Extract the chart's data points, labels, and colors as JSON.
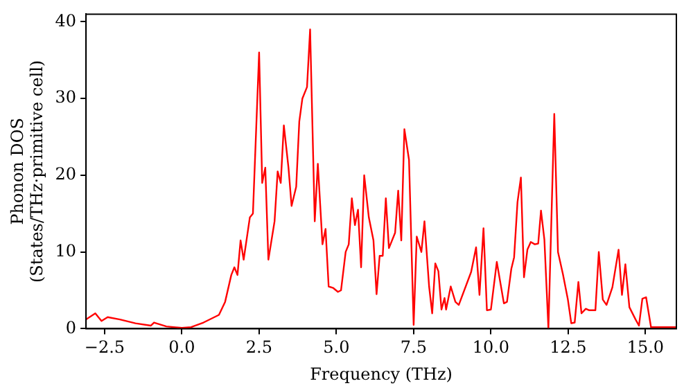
{
  "chart_data": {
    "type": "line",
    "xlabel": "Frequency (THz)",
    "ylabel": "Phonon DOS\n(States/THz·primitive cell)",
    "xlim": [
      -3.1,
      16.0
    ],
    "ylim": [
      0,
      41
    ],
    "xticks": [
      {
        "value": -2.5,
        "label": "−2.5"
      },
      {
        "value": 0,
        "label": "0.0"
      },
      {
        "value": 2.5,
        "label": "2.5"
      },
      {
        "value": 5,
        "label": "5.0"
      },
      {
        "value": 7.5,
        "label": "7.5"
      },
      {
        "value": 10,
        "label": "10.0"
      },
      {
        "value": 12.5,
        "label": "12.5"
      },
      {
        "value": 15,
        "label": "15.0"
      }
    ],
    "yticks": [
      0,
      10,
      20,
      30,
      40
    ],
    "grid": false,
    "legend": false,
    "marker": "none",
    "line_style": "solid",
    "series": [
      {
        "color": "#ff0000",
        "x": [
          -3.1,
          -2.8,
          -2.6,
          -2.4,
          -2.0,
          -1.5,
          -1.0,
          -0.9,
          -0.5,
          0.0,
          0.3,
          0.7,
          1.2,
          1.4,
          1.6,
          1.7,
          1.8,
          1.9,
          2.0,
          2.2,
          2.3,
          2.5,
          2.6,
          2.7,
          2.8,
          3.0,
          3.1,
          3.2,
          3.3,
          3.45,
          3.55,
          3.7,
          3.8,
          3.9,
          4.05,
          4.15,
          4.3,
          4.4,
          4.55,
          4.65,
          4.75,
          4.9,
          5.05,
          5.15,
          5.3,
          5.4,
          5.5,
          5.6,
          5.7,
          5.8,
          5.9,
          6.05,
          6.2,
          6.3,
          6.4,
          6.5,
          6.6,
          6.7,
          6.9,
          7.0,
          7.1,
          7.2,
          7.35,
          7.5,
          7.6,
          7.75,
          7.85,
          8.0,
          8.1,
          8.2,
          8.3,
          8.4,
          8.5,
          8.55,
          8.7,
          8.85,
          8.96,
          9.36,
          9.52,
          9.63,
          9.76,
          9.87,
          10.0,
          10.19,
          10.42,
          10.52,
          10.66,
          10.75,
          10.86,
          10.97,
          11.07,
          11.18,
          11.29,
          11.42,
          11.53,
          11.62,
          11.73,
          11.86,
          12.05,
          12.17,
          12.33,
          12.49,
          12.6,
          12.71,
          12.83,
          12.93,
          13.07,
          13.18,
          13.38,
          13.49,
          13.62,
          13.74,
          13.93,
          14.13,
          14.24,
          14.35,
          14.48,
          14.68,
          14.79,
          14.9,
          15.02,
          15.18,
          16.0
        ],
        "values": [
          1.2,
          2.0,
          1.0,
          1.5,
          1.2,
          0.7,
          0.4,
          0.8,
          0.3,
          0.1,
          0.2,
          0.8,
          1.8,
          3.5,
          7,
          8,
          7,
          11.5,
          9,
          14.5,
          15,
          36,
          19,
          21,
          9,
          14,
          20.5,
          19,
          26.5,
          21,
          16,
          18.5,
          27,
          30,
          31.5,
          39,
          14,
          21.5,
          11,
          13,
          5.5,
          5.3,
          4.8,
          5,
          10,
          11,
          17,
          13.5,
          15.5,
          8,
          20,
          14.5,
          11.5,
          4.5,
          9.5,
          9.5,
          17,
          10.5,
          12.5,
          18,
          11.5,
          26,
          22,
          0.5,
          12,
          10,
          14,
          5.5,
          2,
          8.5,
          7.5,
          2.5,
          4,
          2.5,
          5.5,
          3.5,
          3.1,
          7.4,
          10.6,
          4.4,
          13.1,
          2.4,
          2.5,
          8.7,
          3.3,
          3.5,
          7.8,
          9.3,
          16.5,
          19.7,
          6.7,
          10.3,
          11.3,
          11.0,
          11.1,
          15.4,
          11.6,
          0,
          28,
          10,
          7.1,
          3.8,
          0.7,
          0.8,
          6.1,
          2,
          2.6,
          2.4,
          2.4,
          10,
          3.8,
          3.1,
          5.4,
          10.3,
          4.4,
          8.4,
          2.8,
          1.2,
          0.4,
          3.9,
          4.1,
          0.2,
          0.2
        ]
      }
    ]
  }
}
